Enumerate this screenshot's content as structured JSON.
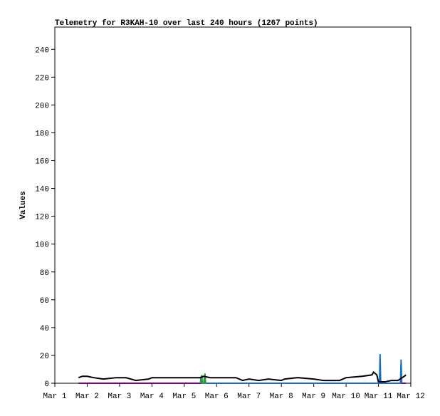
{
  "chart_data": {
    "type": "line",
    "title": "Telemetry for R3KAH-10 over last 240 hours (1267 points)",
    "y_label": "Values",
    "xlim": [
      1,
      12
    ],
    "xticks": [
      {
        "value": 1,
        "label": "Mar 1"
      },
      {
        "value": 2,
        "label": "Mar 2"
      },
      {
        "value": 3,
        "label": "Mar 3"
      },
      {
        "value": 4,
        "label": "Mar 4"
      },
      {
        "value": 5,
        "label": "Mar 5"
      },
      {
        "value": 6,
        "label": "Mar 6"
      },
      {
        "value": 7,
        "label": "Mar 7"
      },
      {
        "value": 8,
        "label": "Mar 8"
      },
      {
        "value": 9,
        "label": "Mar 9"
      },
      {
        "value": 10,
        "label": "Mar 10"
      },
      {
        "value": 11,
        "label": "Mar 11"
      },
      {
        "value": 12,
        "label": "Mar 12"
      }
    ],
    "ylim": [
      0,
      256
    ],
    "yticks": [
      0,
      20,
      40,
      60,
      80,
      100,
      120,
      140,
      160,
      180,
      200,
      220,
      240
    ],
    "series": [
      {
        "color": "#800080",
        "x": [
          1.73,
          11.85
        ],
        "values": [
          0,
          0
        ]
      },
      {
        "color": "#1f6fbf",
        "x": [
          5.5,
          5.52,
          5.54,
          5.6,
          5.62,
          5.64,
          11.03,
          11.05,
          11.07,
          11.68,
          11.7,
          11.72
        ],
        "values": [
          0,
          5,
          0,
          0,
          4,
          0,
          0,
          21,
          0,
          0,
          17,
          0
        ]
      },
      {
        "color": "#2ca02c",
        "x": [
          5.52,
          5.54,
          5.56,
          5.62,
          5.64,
          5.66
        ],
        "values": [
          0,
          6,
          0,
          0,
          7,
          0
        ]
      },
      {
        "color": "#000000",
        "x": [
          1.73,
          1.85,
          2.0,
          2.2,
          2.5,
          2.9,
          3.2,
          3.5,
          3.9,
          4.0,
          5.5,
          5.6,
          5.8,
          6.6,
          6.8,
          7.0,
          7.3,
          7.6,
          8.0,
          8.1,
          8.5,
          9.0,
          9.3,
          9.8,
          10.0,
          10.5,
          10.8,
          10.85,
          10.95,
          11.0,
          11.2,
          11.4,
          11.6,
          11.8,
          11.85
        ],
        "values": [
          4,
          5,
          5,
          4,
          3,
          4,
          4,
          2,
          3,
          4,
          4,
          5,
          4,
          4,
          2,
          3,
          2,
          3,
          2,
          3,
          4,
          3,
          2,
          2,
          4,
          5,
          6,
          8,
          6,
          1,
          1,
          2,
          2,
          5,
          6
        ]
      }
    ]
  }
}
